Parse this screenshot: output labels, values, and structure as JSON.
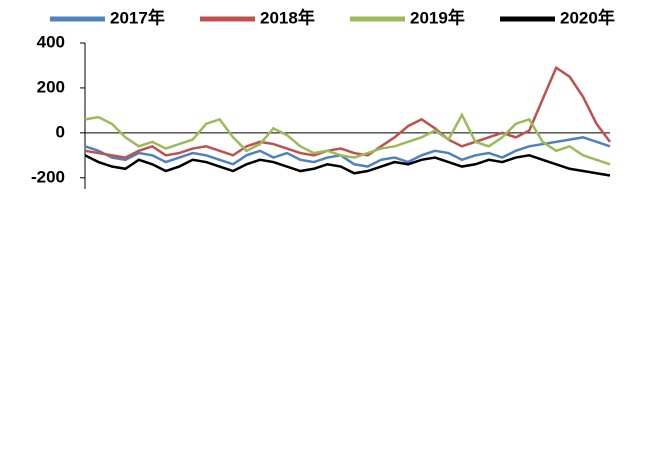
{
  "chart_data": {
    "type": "line",
    "categories": [
      null,
      null,
      null,
      null,
      null,
      null,
      null,
      null,
      null,
      null,
      null,
      null,
      null,
      null,
      null,
      null,
      null,
      null,
      null,
      null,
      null,
      null,
      null,
      null,
      null,
      null,
      null,
      null,
      null,
      null,
      null,
      null,
      null,
      null,
      null,
      null,
      null,
      null,
      null,
      null
    ],
    "series": [
      {
        "name": "2017年",
        "color": "#4f81bd",
        "values": [
          -60,
          -80,
          -110,
          -120,
          -90,
          -100,
          -130,
          -110,
          -90,
          -100,
          -120,
          -140,
          -100,
          -80,
          -110,
          -90,
          -120,
          -130,
          -110,
          -100,
          -140,
          -150,
          -120,
          -110,
          -130,
          -100,
          -80,
          -90,
          -120,
          -100,
          -90,
          -110,
          -80,
          -60,
          -50,
          -40,
          -30,
          -20,
          -40,
          -60
        ]
      },
      {
        "name": "2018年",
        "color": "#c0504d",
        "values": [
          -80,
          -90,
          -100,
          -110,
          -80,
          -60,
          -100,
          -90,
          -70,
          -60,
          -80,
          -100,
          -60,
          -40,
          -50,
          -70,
          -90,
          -100,
          -80,
          -70,
          -90,
          -100,
          -60,
          -20,
          30,
          60,
          20,
          -30,
          -60,
          -40,
          -20,
          0,
          -20,
          10,
          150,
          290,
          250,
          160,
          40,
          -40
        ]
      },
      {
        "name": "2019年",
        "color": "#9bbb59",
        "values": [
          60,
          70,
          40,
          -20,
          -60,
          -40,
          -70,
          -50,
          -30,
          40,
          60,
          -20,
          -80,
          -50,
          20,
          -10,
          -60,
          -90,
          -80,
          -100,
          -110,
          -90,
          -70,
          -60,
          -40,
          -20,
          10,
          -30,
          80,
          -40,
          -60,
          -20,
          40,
          60,
          -40,
          -80,
          -60,
          -100,
          -120,
          -140
        ]
      },
      {
        "name": "2020年",
        "color": "#000000",
        "values": [
          -100,
          -130,
          -150,
          -160,
          -120,
          -140,
          -170,
          -150,
          -120,
          -130,
          -150,
          -170,
          -140,
          -120,
          -130,
          -150,
          -170,
          -160,
          -140,
          -150,
          -180,
          -170,
          -150,
          -130,
          -140,
          -120,
          -110,
          -130,
          -150,
          -140,
          -120,
          -130,
          -110,
          -100,
          -120,
          -140,
          -160,
          -170,
          -180,
          -190
        ]
      }
    ],
    "ylim": [
      -250,
      400
    ],
    "yticks": [
      400,
      200,
      0,
      -200
    ],
    "legend": "top"
  }
}
